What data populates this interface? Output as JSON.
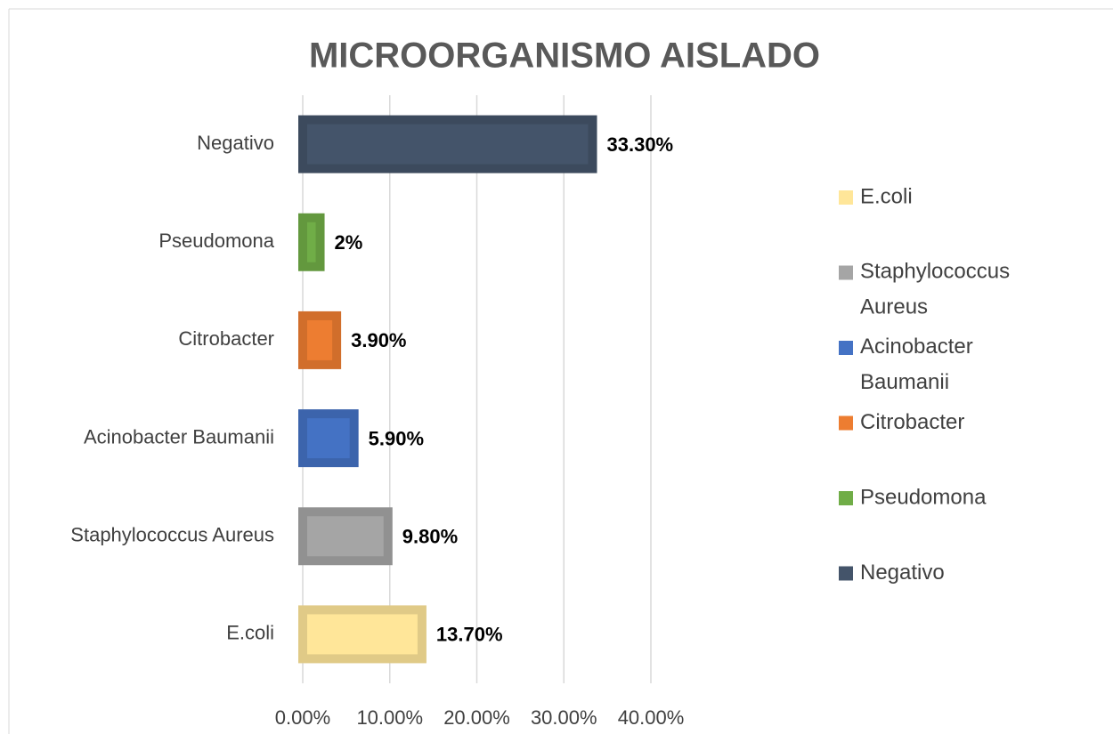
{
  "chart_data": {
    "type": "bar",
    "orientation": "horizontal",
    "title": "MICROORGANISMO AISLADO",
    "categories": [
      "E.coli",
      "Staphylococcus Aureus",
      "Acinobacter Baumanii",
      "Citrobacter",
      "Pseudomona",
      "Negativo"
    ],
    "values": [
      13.7,
      9.8,
      5.9,
      3.9,
      2,
      33.3
    ],
    "value_labels": [
      "13.70%",
      "9.80%",
      "5.90%",
      "3.90%",
      "2%",
      "33.30%"
    ],
    "colors": [
      "#ffe699",
      "#a5a5a5",
      "#4472c4",
      "#ed7d31",
      "#70ad47",
      "#44546a"
    ],
    "xlim": [
      0,
      40
    ],
    "xticks": [
      {
        "value": 0,
        "label": "0.00%"
      },
      {
        "value": 10,
        "label": "10.00%"
      },
      {
        "value": 20,
        "label": "20.00%"
      },
      {
        "value": 30,
        "label": "30.00%"
      },
      {
        "value": 40,
        "label": "40.00%"
      }
    ],
    "grid": true,
    "legend": "right"
  }
}
